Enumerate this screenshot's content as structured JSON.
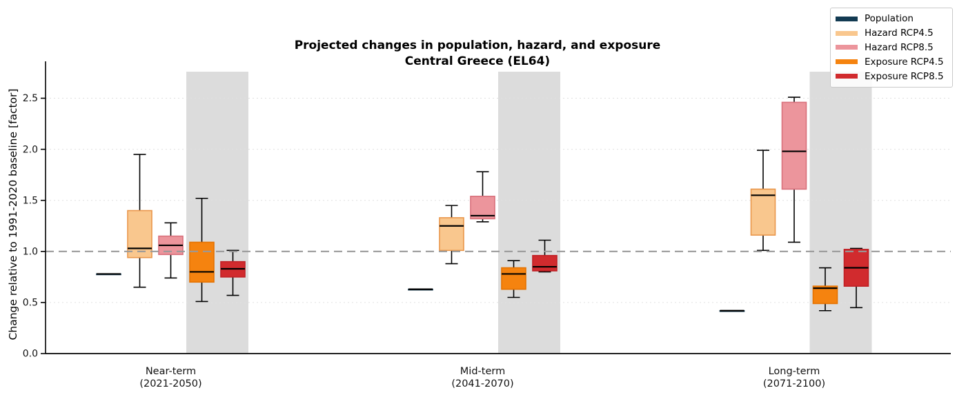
{
  "chart_data": {
    "type": "boxplot",
    "title": "Projected changes in population, hazard, and exposure",
    "subtitle": "Central Greece (EL64)",
    "ylabel": "Change relative to 1991-2020 baseline [factor]",
    "ylim": [
      0,
      2.76
    ],
    "yticks": [
      0.0,
      0.5,
      1.0,
      1.5,
      2.0,
      2.5
    ],
    "baseline_value": 1.0,
    "grid": true,
    "legend_position": "upper right",
    "band_color": "#dcdcdc",
    "baseline_color": "#999999",
    "gridline_color": "#e0e0e0",
    "series": [
      {
        "name": "Population",
        "fill": "#123a52",
        "edge": "#123a52"
      },
      {
        "name": "Hazard RCP4.5",
        "fill": "#f9c78e",
        "edge": "#e9964a"
      },
      {
        "name": "Hazard RCP8.5",
        "fill": "#ec959c",
        "edge": "#d9707b"
      },
      {
        "name": "Exposure RCP4.5",
        "fill": "#f5830f",
        "edge": "#e57200"
      },
      {
        "name": "Exposure RCP8.5",
        "fill": "#d12b2e",
        "edge": "#c01f24"
      }
    ],
    "groups": [
      {
        "label": "Near-term",
        "sublabel": "(2021-2050)",
        "stats": [
          {
            "series": "Population",
            "whislo": 0.78,
            "q1": 0.78,
            "med": 0.78,
            "q3": 0.78,
            "whishi": 0.78
          },
          {
            "series": "Hazard RCP4.5",
            "whislo": 0.65,
            "q1": 0.94,
            "med": 1.03,
            "q3": 1.4,
            "whishi": 1.95
          },
          {
            "series": "Hazard RCP8.5",
            "whislo": 0.74,
            "q1": 0.97,
            "med": 1.06,
            "q3": 1.15,
            "whishi": 1.28
          },
          {
            "series": "Exposure RCP4.5",
            "whislo": 0.51,
            "q1": 0.7,
            "med": 0.8,
            "q3": 1.09,
            "whishi": 1.52
          },
          {
            "series": "Exposure RCP8.5",
            "whislo": 0.57,
            "q1": 0.75,
            "med": 0.83,
            "q3": 0.9,
            "whishi": 1.01
          }
        ]
      },
      {
        "label": "Mid-term",
        "sublabel": "(2041-2070)",
        "stats": [
          {
            "series": "Population",
            "whislo": 0.63,
            "q1": 0.63,
            "med": 0.63,
            "q3": 0.63,
            "whishi": 0.63
          },
          {
            "series": "Hazard RCP4.5",
            "whislo": 0.88,
            "q1": 1.01,
            "med": 1.25,
            "q3": 1.33,
            "whishi": 1.45
          },
          {
            "series": "Hazard RCP8.5",
            "whislo": 1.29,
            "q1": 1.32,
            "med": 1.35,
            "q3": 1.54,
            "whishi": 1.78
          },
          {
            "series": "Exposure RCP4.5",
            "whislo": 0.55,
            "q1": 0.63,
            "med": 0.78,
            "q3": 0.84,
            "whishi": 0.91
          },
          {
            "series": "Exposure RCP8.5",
            "whislo": 0.8,
            "q1": 0.81,
            "med": 0.85,
            "q3": 0.96,
            "whishi": 1.11
          }
        ]
      },
      {
        "label": "Long-term",
        "sublabel": "(2071-2100)",
        "stats": [
          {
            "series": "Population",
            "whislo": 0.42,
            "q1": 0.42,
            "med": 0.42,
            "q3": 0.42,
            "whishi": 0.42
          },
          {
            "series": "Hazard RCP4.5",
            "whislo": 1.01,
            "q1": 1.16,
            "med": 1.55,
            "q3": 1.61,
            "whishi": 1.99
          },
          {
            "series": "Hazard RCP8.5",
            "whislo": 1.09,
            "q1": 1.61,
            "med": 1.98,
            "q3": 2.46,
            "whishi": 2.51
          },
          {
            "series": "Exposure RCP4.5",
            "whislo": 0.42,
            "q1": 0.49,
            "med": 0.64,
            "q3": 0.66,
            "whishi": 0.84
          },
          {
            "series": "Exposure RCP8.5",
            "whislo": 0.45,
            "q1": 0.66,
            "med": 0.84,
            "q3": 1.02,
            "whishi": 1.03
          }
        ]
      }
    ]
  }
}
